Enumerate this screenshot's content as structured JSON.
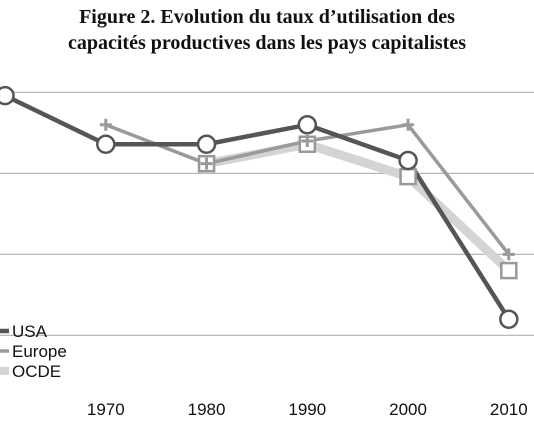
{
  "chart_data": {
    "type": "line",
    "title_lines": [
      "Figure 2. Evolution du taux d’utilisation des",
      "capacités productives dans les pays capitalistes"
    ],
    "xlabel": "",
    "ylabel": "",
    "x": [
      1960,
      1970,
      1980,
      1990,
      2000,
      2010
    ],
    "x_ticks": [
      1970,
      1980,
      1990,
      2000,
      2010
    ],
    "x_tick_labels": [
      "1970",
      "1980",
      "1990",
      "2000",
      "2010"
    ],
    "xlim": [
      1959.5,
      2012.5
    ],
    "ylim": [
      67,
      87
    ],
    "y_gridlines": [
      70,
      75,
      80,
      85
    ],
    "grid": true,
    "legend_position": "bottom-left",
    "series": [
      {
        "name": "USA",
        "color": "#555555",
        "marker": "circle",
        "values": [
          84.8,
          81.8,
          81.8,
          83.0,
          80.8,
          71.0
        ]
      },
      {
        "name": "Europe",
        "color": "#9a9a9a",
        "marker": "plus",
        "values": [
          null,
          83.0,
          80.6,
          82.0,
          83.0,
          75.0
        ]
      },
      {
        "name": "OCDE",
        "color": "#d4d4d4",
        "marker": "square",
        "values": [
          null,
          null,
          80.6,
          81.8,
          79.8,
          74.0
        ]
      }
    ]
  }
}
